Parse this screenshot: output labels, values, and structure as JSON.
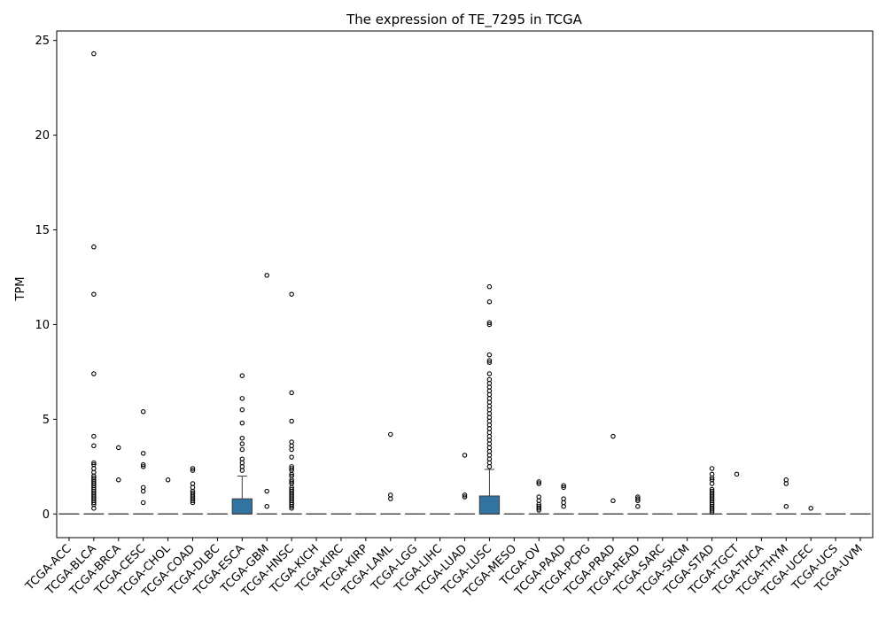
{
  "chart_data": {
    "type": "box",
    "title": "The expression of TE_7295 in TCGA",
    "xlabel": "",
    "ylabel": "TPM",
    "ylim": [
      -1.25,
      25.5
    ],
    "yticks": [
      0,
      5,
      10,
      15,
      20,
      25
    ],
    "box_color": "#3274a1",
    "categories": [
      "TCGA-ACC",
      "TCGA-BLCA",
      "TCGA-BRCA",
      "TCGA-CESC",
      "TCGA-CHOL",
      "TCGA-COAD",
      "TCGA-DLBC",
      "TCGA-ESCA",
      "TCGA-GBM",
      "TCGA-HNSC",
      "TCGA-KICH",
      "TCGA-KIRC",
      "TCGA-KIRP",
      "TCGA-LAML",
      "TCGA-LGG",
      "TCGA-LIHC",
      "TCGA-LUAD",
      "TCGA-LUSC",
      "TCGA-MESO",
      "TCGA-OV",
      "TCGA-PAAD",
      "TCGA-PCPG",
      "TCGA-PRAD",
      "TCGA-READ",
      "TCGA-SARC",
      "TCGA-SKCM",
      "TCGA-STAD",
      "TCGA-TGCT",
      "TCGA-THCA",
      "TCGA-THYM",
      "TCGA-UCEC",
      "TCGA-UCS",
      "TCGA-UVM"
    ],
    "boxes": [
      {
        "q1": 0,
        "median": 0,
        "q3": 0,
        "whislo": 0,
        "whishi": 0,
        "fliers": []
      },
      {
        "q1": 0,
        "median": 0,
        "q3": 0,
        "whislo": 0,
        "whishi": 0,
        "fliers": [
          24.3,
          14.1,
          11.6,
          7.4,
          4.1,
          3.6,
          2.7,
          2.6,
          2.4,
          2.2,
          2.0,
          1.9,
          1.8,
          1.7,
          1.6,
          1.5,
          1.4,
          1.3,
          1.2,
          1.1,
          1.0,
          0.9,
          0.8,
          0.7,
          0.6,
          0.5,
          0.3
        ]
      },
      {
        "q1": 0,
        "median": 0,
        "q3": 0,
        "whislo": 0,
        "whishi": 0,
        "fliers": [
          3.5,
          1.8
        ]
      },
      {
        "q1": 0,
        "median": 0,
        "q3": 0,
        "whislo": 0,
        "whishi": 0,
        "fliers": [
          5.4,
          3.2,
          2.6,
          2.5,
          1.4,
          1.2,
          0.6
        ]
      },
      {
        "q1": 0,
        "median": 0,
        "q3": 0,
        "whislo": 0,
        "whishi": 0,
        "fliers": [
          1.8
        ]
      },
      {
        "q1": 0,
        "median": 0,
        "q3": 0,
        "whislo": 0,
        "whishi": 0,
        "fliers": [
          2.4,
          2.3,
          1.6,
          1.4,
          1.2,
          1.1,
          1.0,
          0.9,
          0.8,
          0.7,
          0.6
        ]
      },
      {
        "q1": 0,
        "median": 0,
        "q3": 0,
        "whislo": 0,
        "whishi": 0,
        "fliers": []
      },
      {
        "q1": 0,
        "median": 0,
        "q3": 0.8,
        "whislo": 0,
        "whishi": 2.0,
        "fliers": [
          7.3,
          6.1,
          5.5,
          4.8,
          4.0,
          3.7,
          3.4,
          2.9,
          2.7,
          2.5,
          2.3
        ]
      },
      {
        "q1": 0,
        "median": 0,
        "q3": 0,
        "whislo": 0,
        "whishi": 0,
        "fliers": [
          12.6,
          1.2,
          0.4
        ]
      },
      {
        "q1": 0,
        "median": 0,
        "q3": 0,
        "whislo": 0,
        "whishi": 0,
        "fliers": [
          11.6,
          6.4,
          4.9,
          3.8,
          3.6,
          3.4,
          3.0,
          2.5,
          2.4,
          2.3,
          2.1,
          2.0,
          1.8,
          1.7,
          1.6,
          1.4,
          1.3,
          1.2,
          1.1,
          1.0,
          0.9,
          0.8,
          0.7,
          0.6,
          0.5,
          0.4,
          0.3
        ]
      },
      {
        "q1": 0,
        "median": 0,
        "q3": 0,
        "whislo": 0,
        "whishi": 0,
        "fliers": []
      },
      {
        "q1": 0,
        "median": 0,
        "q3": 0,
        "whislo": 0,
        "whishi": 0,
        "fliers": []
      },
      {
        "q1": 0,
        "median": 0,
        "q3": 0,
        "whislo": 0,
        "whishi": 0,
        "fliers": []
      },
      {
        "q1": 0,
        "median": 0,
        "q3": 0,
        "whislo": 0,
        "whishi": 0,
        "fliers": [
          4.2,
          1.0,
          0.8
        ]
      },
      {
        "q1": 0,
        "median": 0,
        "q3": 0,
        "whislo": 0,
        "whishi": 0,
        "fliers": []
      },
      {
        "q1": 0,
        "median": 0,
        "q3": 0,
        "whislo": 0,
        "whishi": 0,
        "fliers": []
      },
      {
        "q1": 0,
        "median": 0,
        "q3": 0,
        "whislo": 0,
        "whishi": 0,
        "fliers": [
          3.1,
          1.0,
          0.9
        ]
      },
      {
        "q1": 0,
        "median": 0,
        "q3": 0.95,
        "whislo": 0,
        "whishi": 2.35,
        "fliers": [
          12.0,
          11.2,
          10.1,
          10.0,
          8.4,
          8.1,
          8.0,
          7.4,
          7.1,
          6.9,
          6.7,
          6.5,
          6.3,
          6.1,
          5.9,
          5.7,
          5.5,
          5.3,
          5.1,
          4.9,
          4.7,
          4.5,
          4.3,
          4.1,
          3.9,
          3.7,
          3.5,
          3.3,
          3.1,
          2.9,
          2.7,
          2.5
        ]
      },
      {
        "q1": 0,
        "median": 0,
        "q3": 0,
        "whislo": 0,
        "whishi": 0,
        "fliers": []
      },
      {
        "q1": 0,
        "median": 0,
        "q3": 0,
        "whislo": 0,
        "whishi": 0,
        "fliers": [
          1.7,
          1.6,
          0.9,
          0.7,
          0.5,
          0.4,
          0.3,
          0.2
        ]
      },
      {
        "q1": 0,
        "median": 0,
        "q3": 0,
        "whislo": 0,
        "whishi": 0,
        "fliers": [
          1.5,
          1.4,
          0.8,
          0.6,
          0.4
        ]
      },
      {
        "q1": 0,
        "median": 0,
        "q3": 0,
        "whislo": 0,
        "whishi": 0,
        "fliers": []
      },
      {
        "q1": 0,
        "median": 0,
        "q3": 0,
        "whislo": 0,
        "whishi": 0,
        "fliers": [
          4.1,
          0.7
        ]
      },
      {
        "q1": 0,
        "median": 0,
        "q3": 0,
        "whislo": 0,
        "whishi": 0,
        "fliers": [
          0.9,
          0.8,
          0.7,
          0.4
        ]
      },
      {
        "q1": 0,
        "median": 0,
        "q3": 0,
        "whislo": 0,
        "whishi": 0,
        "fliers": []
      },
      {
        "q1": 0,
        "median": 0,
        "q3": 0,
        "whislo": 0,
        "whishi": 0,
        "fliers": []
      },
      {
        "q1": 0,
        "median": 0,
        "q3": 0,
        "whislo": 0,
        "whishi": 0,
        "fliers": [
          2.4,
          2.1,
          1.9,
          1.8,
          1.6,
          1.3,
          1.2,
          1.1,
          1.0,
          0.9,
          0.8,
          0.7,
          0.6,
          0.5,
          0.4,
          0.3,
          0.2,
          0.1
        ]
      },
      {
        "q1": 0,
        "median": 0,
        "q3": 0,
        "whislo": 0,
        "whishi": 0,
        "fliers": [
          2.1
        ]
      },
      {
        "q1": 0,
        "median": 0,
        "q3": 0,
        "whislo": 0,
        "whishi": 0,
        "fliers": []
      },
      {
        "q1": 0,
        "median": 0,
        "q3": 0,
        "whislo": 0,
        "whishi": 0,
        "fliers": [
          1.8,
          1.6,
          0.4
        ]
      },
      {
        "q1": 0,
        "median": 0,
        "q3": 0,
        "whislo": 0,
        "whishi": 0,
        "fliers": [
          0.3
        ]
      },
      {
        "q1": 0,
        "median": 0,
        "q3": 0,
        "whislo": 0,
        "whishi": 0,
        "fliers": []
      },
      {
        "q1": 0,
        "median": 0,
        "q3": 0,
        "whislo": 0,
        "whishi": 0,
        "fliers": []
      }
    ]
  }
}
